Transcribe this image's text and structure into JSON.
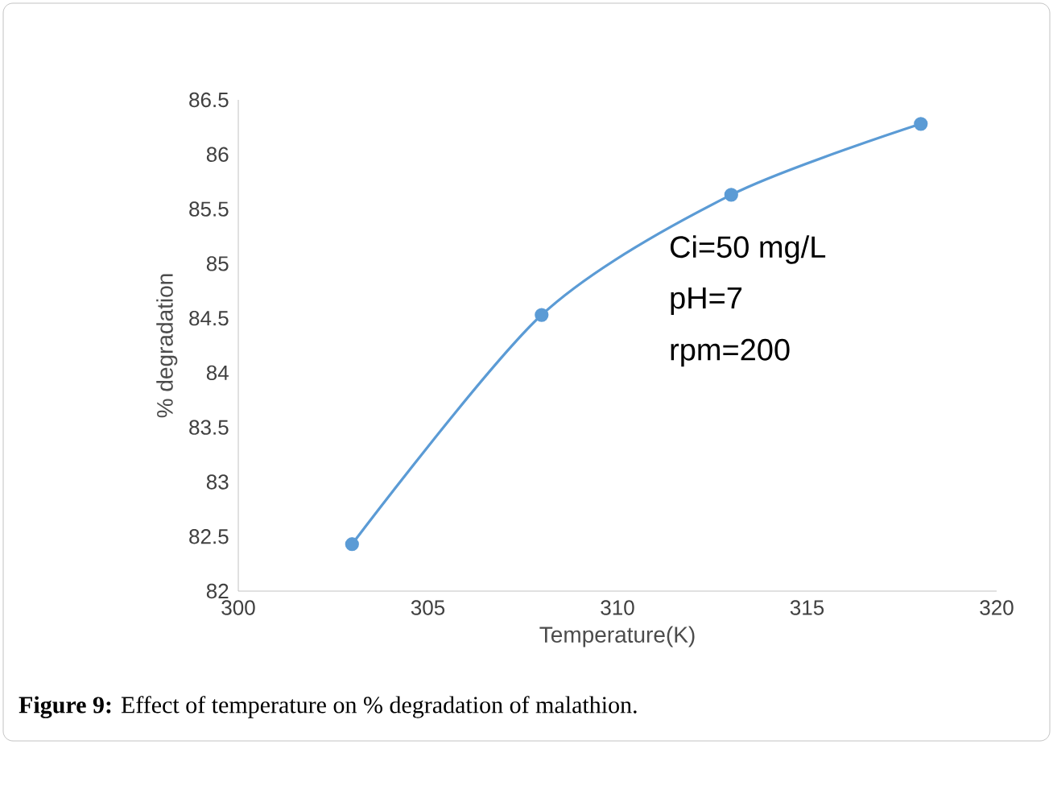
{
  "chart_data": {
    "type": "line",
    "xlabel": "Temperature(K)",
    "ylabel": "% degradation",
    "x": [
      303,
      308,
      313,
      318
    ],
    "series": [
      {
        "color": "#5b9bd5",
        "values": [
          82.43,
          84.53,
          85.63,
          86.28
        ]
      }
    ],
    "xlim": [
      300,
      320
    ],
    "xticks": [
      300,
      305,
      310,
      315,
      320
    ],
    "ylim": [
      82,
      86.5
    ],
    "yticks": [
      82,
      82.5,
      83,
      83.5,
      84,
      84.5,
      85,
      85.5,
      86,
      86.5
    ],
    "grid": false,
    "marker": "circle",
    "line_style": "solid",
    "annotations": [
      "Ci=50 mg/L",
      "pH=7",
      "rpm=200",
      "**Figure 9:** Effect of temperature on % degradation of malathion."
    ]
  }
}
